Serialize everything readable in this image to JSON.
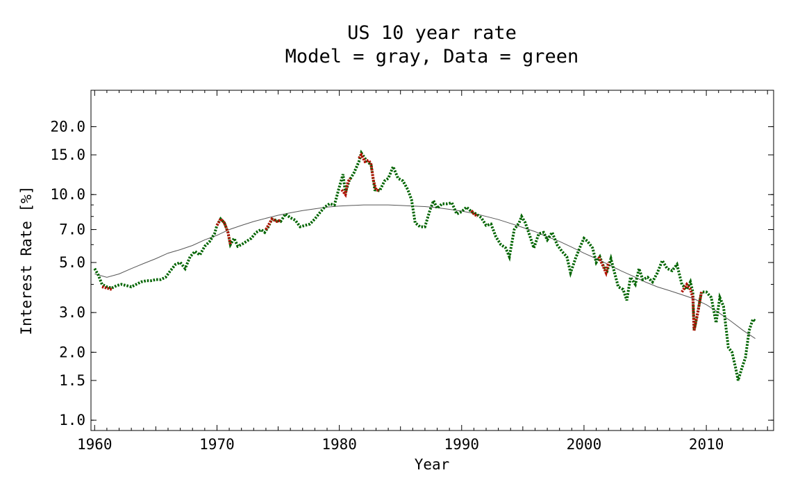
{
  "chart_data": {
    "type": "line",
    "title_line1": "US 10 year rate",
    "title_line2": "Model = gray, Data = green",
    "xlabel": "Year",
    "ylabel": "Interest Rate [%]",
    "xlim": [
      1959.7,
      2015.5
    ],
    "ylim_log": [
      0.9,
      29
    ],
    "y_scale": "log",
    "x_ticks": [
      1960,
      1970,
      1980,
      1990,
      2000,
      2010
    ],
    "x_tick_labels": [
      "1960",
      "1970",
      "1980",
      "1990",
      "2000",
      "2010"
    ],
    "y_ticks": [
      1.0,
      1.5,
      2.0,
      3.0,
      5.0,
      7.0,
      10.0,
      15.0,
      20.0
    ],
    "y_tick_labels": [
      "1.0",
      "1.5",
      "2.0",
      "3.0",
      "5.0",
      "7.0",
      "10.0",
      "15.0",
      "20.0"
    ],
    "colors": {
      "model": "#555555",
      "data": "#006400",
      "highlight": "#b01000"
    },
    "series": [
      {
        "name": "Model",
        "color": "#555555",
        "style": "thin-solid",
        "points": [
          [
            1960.0,
            4.45
          ],
          [
            1961.0,
            4.3
          ],
          [
            1962.0,
            4.45
          ],
          [
            1963.0,
            4.7
          ],
          [
            1964.0,
            4.95
          ],
          [
            1965.0,
            5.2
          ],
          [
            1966.0,
            5.5
          ],
          [
            1967.0,
            5.7
          ],
          [
            1968.0,
            5.95
          ],
          [
            1969.0,
            6.3
          ],
          [
            1970.0,
            6.6
          ],
          [
            1971.0,
            7.0
          ],
          [
            1972.0,
            7.3
          ],
          [
            1973.0,
            7.6
          ],
          [
            1974.0,
            7.85
          ],
          [
            1975.0,
            8.1
          ],
          [
            1976.0,
            8.3
          ],
          [
            1977.0,
            8.5
          ],
          [
            1978.0,
            8.65
          ],
          [
            1979.0,
            8.8
          ],
          [
            1980.0,
            8.9
          ],
          [
            1981.0,
            8.95
          ],
          [
            1982.0,
            9.0
          ],
          [
            1983.0,
            9.0
          ],
          [
            1984.0,
            9.0
          ],
          [
            1985.0,
            8.95
          ],
          [
            1986.0,
            8.9
          ],
          [
            1987.0,
            8.85
          ],
          [
            1988.0,
            8.75
          ],
          [
            1989.0,
            8.6
          ],
          [
            1990.0,
            8.45
          ],
          [
            1991.0,
            8.25
          ],
          [
            1992.0,
            8.0
          ],
          [
            1993.0,
            7.75
          ],
          [
            1994.0,
            7.45
          ],
          [
            1995.0,
            7.15
          ],
          [
            1996.0,
            6.85
          ],
          [
            1997.0,
            6.5
          ],
          [
            1998.0,
            6.2
          ],
          [
            1999.0,
            5.85
          ],
          [
            2000.0,
            5.5
          ],
          [
            2001.0,
            5.2
          ],
          [
            2002.0,
            4.9
          ],
          [
            2003.0,
            4.6
          ],
          [
            2004.0,
            4.35
          ],
          [
            2005.0,
            4.1
          ],
          [
            2006.0,
            3.9
          ],
          [
            2007.0,
            3.75
          ],
          [
            2008.0,
            3.6
          ],
          [
            2009.0,
            3.45
          ],
          [
            2010.0,
            3.25
          ],
          [
            2011.0,
            3.0
          ],
          [
            2012.0,
            2.75
          ],
          [
            2013.0,
            2.5
          ],
          [
            2014.0,
            2.3
          ]
        ]
      },
      {
        "name": "Data",
        "color": "#006400",
        "style": "thick-dotted",
        "points": [
          [
            1960.0,
            4.7
          ],
          [
            1960.3,
            4.4
          ],
          [
            1960.6,
            4.0
          ],
          [
            1961.0,
            3.9
          ],
          [
            1961.4,
            3.85
          ],
          [
            1961.8,
            3.95
          ],
          [
            1962.2,
            4.0
          ],
          [
            1962.6,
            3.95
          ],
          [
            1963.0,
            3.9
          ],
          [
            1963.4,
            4.0
          ],
          [
            1963.8,
            4.1
          ],
          [
            1964.2,
            4.15
          ],
          [
            1964.6,
            4.15
          ],
          [
            1965.0,
            4.2
          ],
          [
            1965.4,
            4.2
          ],
          [
            1965.8,
            4.3
          ],
          [
            1966.2,
            4.6
          ],
          [
            1966.6,
            4.9
          ],
          [
            1967.0,
            5.0
          ],
          [
            1967.4,
            4.7
          ],
          [
            1967.8,
            5.3
          ],
          [
            1968.2,
            5.6
          ],
          [
            1968.6,
            5.4
          ],
          [
            1969.0,
            5.9
          ],
          [
            1969.4,
            6.2
          ],
          [
            1969.8,
            6.7
          ],
          [
            1970.0,
            7.3
          ],
          [
            1970.3,
            7.8
          ],
          [
            1970.6,
            7.5
          ],
          [
            1970.9,
            6.8
          ],
          [
            1971.1,
            6.0
          ],
          [
            1971.4,
            6.4
          ],
          [
            1971.7,
            5.9
          ],
          [
            1972.0,
            6.0
          ],
          [
            1972.4,
            6.2
          ],
          [
            1972.8,
            6.4
          ],
          [
            1973.2,
            6.8
          ],
          [
            1973.6,
            7.0
          ],
          [
            1973.9,
            6.8
          ],
          [
            1974.2,
            7.2
          ],
          [
            1974.5,
            7.8
          ],
          [
            1974.8,
            7.7
          ],
          [
            1975.2,
            7.6
          ],
          [
            1975.6,
            8.2
          ],
          [
            1976.0,
            7.9
          ],
          [
            1976.4,
            7.7
          ],
          [
            1976.8,
            7.2
          ],
          [
            1977.2,
            7.3
          ],
          [
            1977.6,
            7.4
          ],
          [
            1978.0,
            7.8
          ],
          [
            1978.4,
            8.3
          ],
          [
            1978.8,
            8.8
          ],
          [
            1979.2,
            9.1
          ],
          [
            1979.6,
            9.0
          ],
          [
            1980.0,
            10.8
          ],
          [
            1980.3,
            12.3
          ],
          [
            1980.5,
            10.2
          ],
          [
            1980.8,
            11.5
          ],
          [
            1981.2,
            12.5
          ],
          [
            1981.6,
            14.0
          ],
          [
            1981.8,
            15.3
          ],
          [
            1982.2,
            14.2
          ],
          [
            1982.6,
            13.5
          ],
          [
            1982.9,
            10.5
          ],
          [
            1983.3,
            10.4
          ],
          [
            1983.7,
            11.5
          ],
          [
            1984.0,
            11.8
          ],
          [
            1984.4,
            13.3
          ],
          [
            1984.8,
            11.8
          ],
          [
            1985.2,
            11.5
          ],
          [
            1985.6,
            10.5
          ],
          [
            1985.9,
            9.5
          ],
          [
            1986.2,
            7.5
          ],
          [
            1986.6,
            7.2
          ],
          [
            1987.0,
            7.2
          ],
          [
            1987.4,
            8.5
          ],
          [
            1987.7,
            9.4
          ],
          [
            1988.0,
            8.7
          ],
          [
            1988.4,
            9.1
          ],
          [
            1988.8,
            9.1
          ],
          [
            1989.2,
            9.2
          ],
          [
            1989.6,
            8.2
          ],
          [
            1990.0,
            8.4
          ],
          [
            1990.4,
            8.8
          ],
          [
            1990.8,
            8.4
          ],
          [
            1991.2,
            8.2
          ],
          [
            1991.6,
            7.9
          ],
          [
            1992.0,
            7.3
          ],
          [
            1992.4,
            7.4
          ],
          [
            1992.8,
            6.5
          ],
          [
            1993.2,
            6.0
          ],
          [
            1993.6,
            5.8
          ],
          [
            1993.9,
            5.3
          ],
          [
            1994.3,
            7.0
          ],
          [
            1994.7,
            7.5
          ],
          [
            1994.9,
            8.0
          ],
          [
            1995.2,
            7.5
          ],
          [
            1995.6,
            6.5
          ],
          [
            1995.9,
            5.8
          ],
          [
            1996.3,
            6.7
          ],
          [
            1996.7,
            6.8
          ],
          [
            1997.0,
            6.3
          ],
          [
            1997.4,
            6.8
          ],
          [
            1997.8,
            6.0
          ],
          [
            1998.2,
            5.6
          ],
          [
            1998.6,
            5.3
          ],
          [
            1998.9,
            4.5
          ],
          [
            1999.3,
            5.2
          ],
          [
            1999.7,
            5.9
          ],
          [
            2000.0,
            6.4
          ],
          [
            2000.3,
            6.2
          ],
          [
            2000.7,
            5.8
          ],
          [
            2001.0,
            5.0
          ],
          [
            2001.3,
            5.3
          ],
          [
            2001.6,
            4.8
          ],
          [
            2001.9,
            4.6
          ],
          [
            2002.2,
            5.2
          ],
          [
            2002.5,
            4.5
          ],
          [
            2002.8,
            3.9
          ],
          [
            2003.2,
            3.8
          ],
          [
            2003.5,
            3.4
          ],
          [
            2003.8,
            4.3
          ],
          [
            2004.2,
            4.0
          ],
          [
            2004.5,
            4.7
          ],
          [
            2004.8,
            4.2
          ],
          [
            2005.2,
            4.3
          ],
          [
            2005.6,
            4.1
          ],
          [
            2006.0,
            4.5
          ],
          [
            2006.4,
            5.1
          ],
          [
            2006.8,
            4.7
          ],
          [
            2007.2,
            4.6
          ],
          [
            2007.6,
            4.9
          ],
          [
            2008.0,
            4.0
          ],
          [
            2008.4,
            3.8
          ],
          [
            2008.7,
            4.1
          ],
          [
            2008.9,
            3.7
          ],
          [
            2009.0,
            2.5
          ],
          [
            2009.3,
            3.0
          ],
          [
            2009.6,
            3.7
          ],
          [
            2010.0,
            3.7
          ],
          [
            2010.4,
            3.5
          ],
          [
            2010.8,
            2.7
          ],
          [
            2011.1,
            3.5
          ],
          [
            2011.4,
            3.2
          ],
          [
            2011.8,
            2.1
          ],
          [
            2012.1,
            2.0
          ],
          [
            2012.4,
            1.7
          ],
          [
            2012.6,
            1.5
          ],
          [
            2012.9,
            1.7
          ],
          [
            2013.2,
            1.9
          ],
          [
            2013.5,
            2.5
          ],
          [
            2013.8,
            2.8
          ],
          [
            2014.0,
            2.75
          ]
        ]
      }
    ],
    "highlight_segments": [
      [
        [
          1960.6,
          3.9
        ],
        [
          1961.0,
          3.85
        ],
        [
          1961.4,
          3.8
        ]
      ],
      [
        [
          1970.0,
          7.3
        ],
        [
          1970.3,
          7.8
        ],
        [
          1970.6,
          7.5
        ],
        [
          1970.9,
          6.8
        ],
        [
          1971.1,
          6.0
        ]
      ],
      [
        [
          1974.0,
          7.0
        ],
        [
          1974.5,
          7.8
        ],
        [
          1974.9,
          7.6
        ],
        [
          1975.2,
          7.7
        ]
      ],
      [
        [
          1980.2,
          10.5
        ],
        [
          1980.5,
          10.0
        ],
        [
          1980.7,
          11.4
        ],
        [
          1980.9,
          11.8
        ]
      ],
      [
        [
          1981.6,
          14.5
        ],
        [
          1981.8,
          15.0
        ],
        [
          1982.1,
          14.0
        ],
        [
          1982.4,
          14.2
        ],
        [
          1982.6,
          13.6
        ],
        [
          1982.8,
          11.5
        ],
        [
          1983.0,
          10.5
        ],
        [
          1983.3,
          10.4
        ]
      ],
      [
        [
          1990.8,
          8.5
        ],
        [
          1991.0,
          8.2
        ],
        [
          1991.3,
          8.0
        ]
      ],
      [
        [
          2001.2,
          5.3
        ],
        [
          2001.5,
          4.9
        ],
        [
          2001.8,
          4.5
        ],
        [
          2002.0,
          5.0
        ]
      ],
      [
        [
          2008.0,
          3.7
        ],
        [
          2008.4,
          4.0
        ],
        [
          2008.7,
          3.8
        ],
        [
          2008.9,
          3.5
        ],
        [
          2009.0,
          2.5
        ],
        [
          2009.3,
          3.0
        ],
        [
          2009.6,
          3.7
        ]
      ]
    ]
  }
}
